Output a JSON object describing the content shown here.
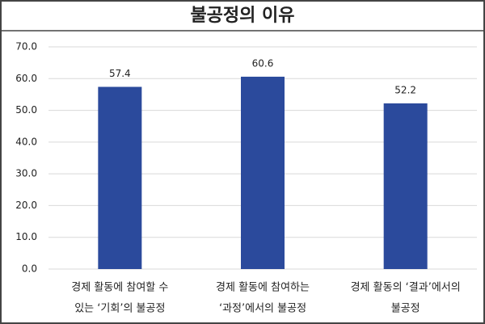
{
  "chart_data": {
    "type": "bar",
    "title": "불공정의 이유",
    "categories": [
      [
        "경제 활동에 참여할 수",
        "있는 ‘기회’의 불공정"
      ],
      [
        "경제 활동에 참여하는",
        "‘과정’에서의 불공정"
      ],
      [
        "경제 활동의 ‘결과’에서의",
        "불공정"
      ]
    ],
    "values": [
      57.4,
      60.6,
      52.2
    ],
    "color": "#2b4a9c",
    "ylim": [
      0,
      70
    ],
    "yticks": [
      {
        "value": 0,
        "label": "0.0"
      },
      {
        "value": 10,
        "label": "10.0"
      },
      {
        "value": 20,
        "label": "20.0"
      },
      {
        "value": 30,
        "label": "30.0"
      },
      {
        "value": 40,
        "label": "40.0"
      },
      {
        "value": 50,
        "label": "50.0"
      },
      {
        "value": 60,
        "label": "60.0"
      },
      {
        "value": 70,
        "label": "70.0"
      }
    ],
    "grid": true
  }
}
